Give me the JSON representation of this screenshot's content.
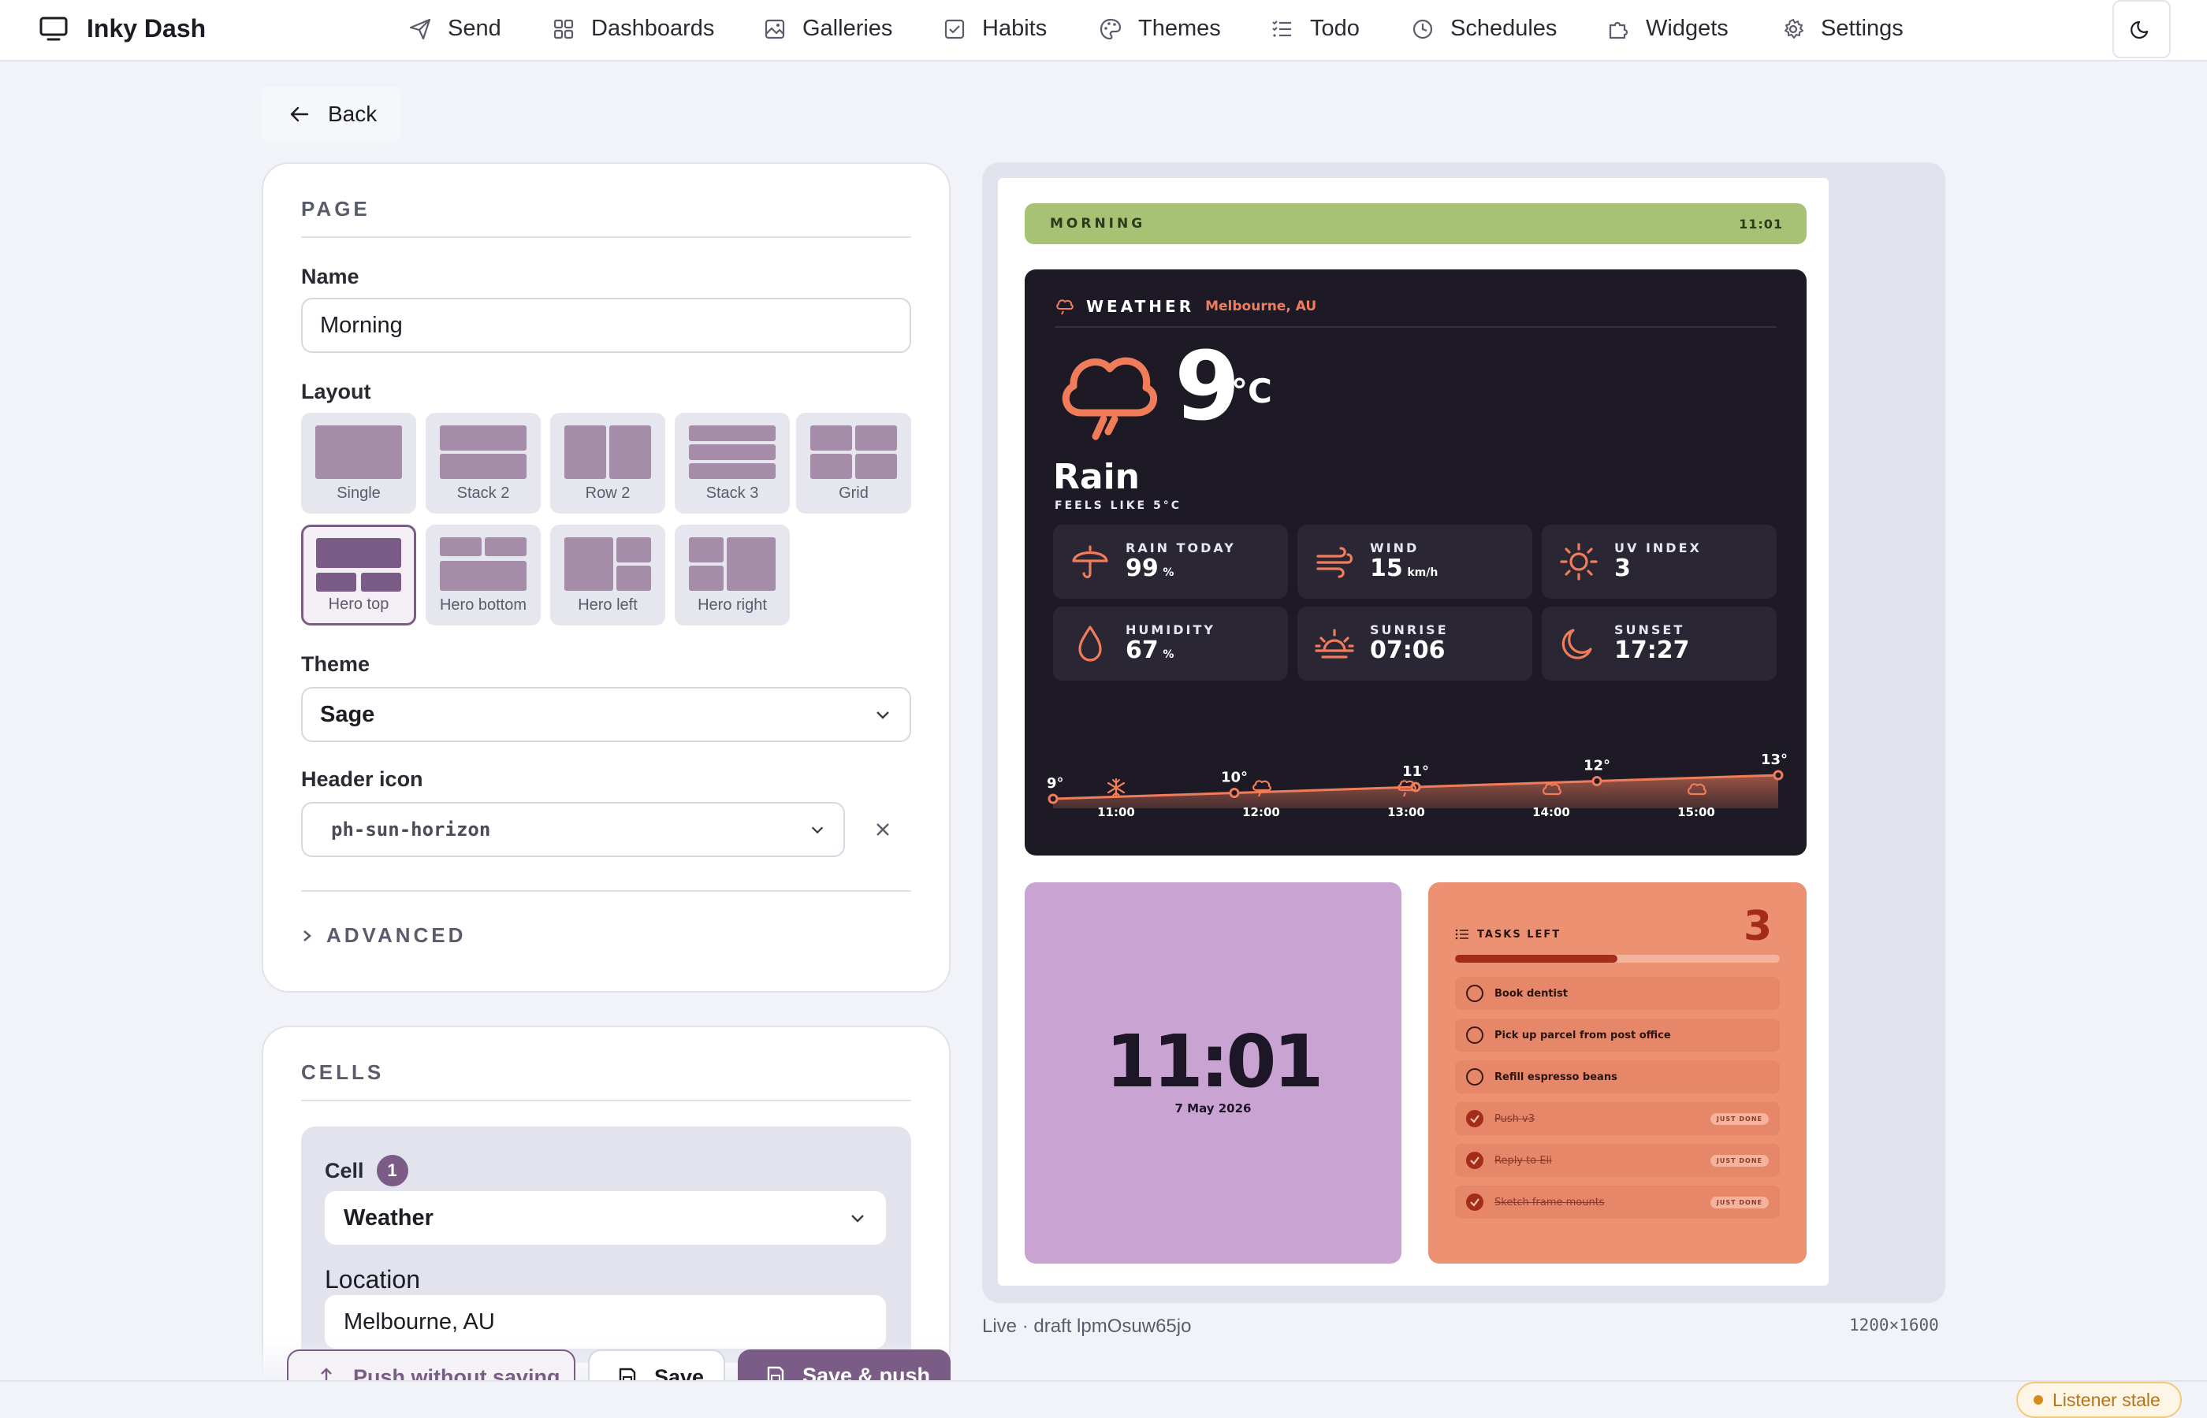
{
  "app": {
    "title": "Inky Dash"
  },
  "nav": {
    "items": [
      {
        "label": "Send",
        "icon": "paper-plane-icon"
      },
      {
        "label": "Dashboards",
        "icon": "grid-icon"
      },
      {
        "label": "Galleries",
        "icon": "image-icon"
      },
      {
        "label": "Habits",
        "icon": "checkbox-icon"
      },
      {
        "label": "Themes",
        "icon": "palette-icon"
      },
      {
        "label": "Todo",
        "icon": "list-icon"
      },
      {
        "label": "Schedules",
        "icon": "clock-icon"
      },
      {
        "label": "Widgets",
        "icon": "puzzle-icon"
      },
      {
        "label": "Settings",
        "icon": "gear-icon"
      }
    ],
    "theme_toggle_icon": "moon-icon"
  },
  "back": {
    "label": "Back"
  },
  "page_section": {
    "title": "PAGE",
    "name_label": "Name",
    "name_value": "Morning",
    "layout_label": "Layout",
    "layouts": [
      "Single",
      "Stack 2",
      "Row 2",
      "Stack 3",
      "Grid",
      "Hero top",
      "Hero bottom",
      "Hero left",
      "Hero right"
    ],
    "selected_layout": "Hero top",
    "theme_label": "Theme",
    "theme_value": "Sage",
    "header_icon_label": "Header icon",
    "header_icon_value": "ph-sun-horizon",
    "advanced_label": "ADVANCED"
  },
  "cells_section": {
    "title": "CELLS",
    "cell_label": "Cell",
    "cell_number": "1",
    "cell_type": "Weather",
    "location_label": "Location",
    "location_value": "Melbourne, AU"
  },
  "actions": {
    "push_without_saving": "Push without saving",
    "save": "Save",
    "save_and_push": "Save & push"
  },
  "preview": {
    "header_title": "MORNING",
    "header_time": "11:01",
    "weather": {
      "title": "WEATHER",
      "location": "Melbourne, AU",
      "temp": "9",
      "unit": "°C",
      "condition": "Rain",
      "feels_like": "FEELS LIKE 5°C",
      "stats": [
        {
          "label": "RAIN TODAY",
          "value": "99",
          "unit": "%",
          "icon": "umbrella-icon"
        },
        {
          "label": "WIND",
          "value": "15",
          "unit": "km/h",
          "icon": "wind-icon"
        },
        {
          "label": "UV INDEX",
          "value": "3",
          "unit": "",
          "icon": "sun-icon"
        },
        {
          "label": "HUMIDITY",
          "value": "67",
          "unit": "%",
          "icon": "drop-icon"
        },
        {
          "label": "SUNRISE",
          "value": "07:06",
          "unit": "",
          "icon": "sunrise-icon"
        },
        {
          "label": "SUNSET",
          "value": "17:27",
          "unit": "",
          "icon": "moon-icon"
        }
      ],
      "hourly_temps": [
        "9°",
        "10°",
        "11°",
        "12°",
        "13°"
      ],
      "hourly_values": [
        9,
        10,
        11,
        12,
        13
      ],
      "hourly_times": [
        "11:00",
        "12:00",
        "13:00",
        "14:00",
        "15:00"
      ],
      "hourly_icons": [
        "snowflake-icon",
        "rain-cloud-icon",
        "rain-cloud-icon",
        "cloud-icon",
        "cloud-icon"
      ]
    },
    "clock": {
      "time": "11:01",
      "date": "7 May 2026"
    },
    "tasks": {
      "title": "TASKS LEFT",
      "count": "3",
      "progress": 0.5,
      "items": [
        {
          "text": "Book dentist",
          "done": false,
          "badge": ""
        },
        {
          "text": "Pick up parcel from post office",
          "done": false,
          "badge": ""
        },
        {
          "text": "Refill espresso beans",
          "done": false,
          "badge": ""
        },
        {
          "text": "Push v3",
          "done": true,
          "badge": "JUST DONE"
        },
        {
          "text": "Reply to Eli",
          "done": true,
          "badge": "JUST DONE"
        },
        {
          "text": "Sketch frame mounts",
          "done": true,
          "badge": "JUST DONE"
        }
      ]
    },
    "status": "Live · draft lpmOsuw65jo",
    "resolution": "1200×1600"
  },
  "listener": {
    "label": "Listener stale"
  },
  "colors": {
    "accent": "#7a5c86",
    "header_bar": "#a8c275",
    "weather_bg": "#1d1a26",
    "weather_accent": "#f07c5a",
    "clock_bg": "#c9a3d1",
    "tasks_bg": "#ec9273"
  }
}
